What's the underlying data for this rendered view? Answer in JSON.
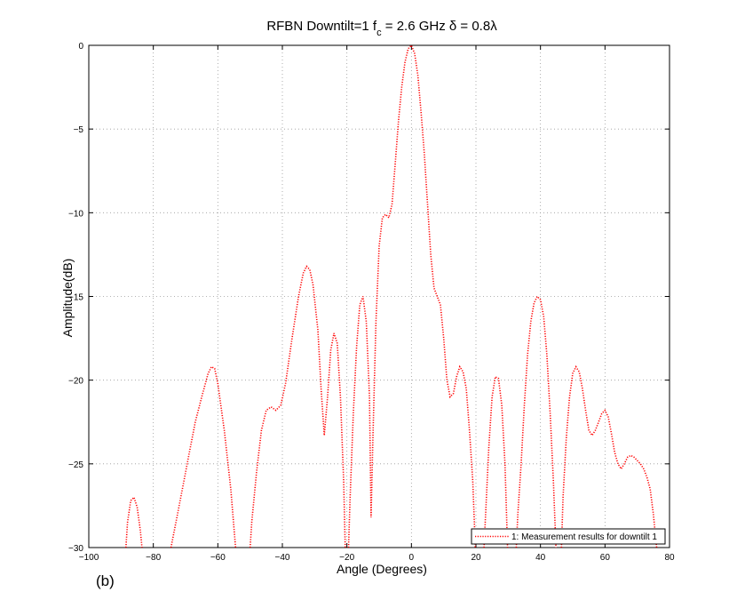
{
  "panel_label": "(b)",
  "colors": {
    "series": "#ff0000",
    "axis": "#000000",
    "grid": "#9a9a9a"
  },
  "chart_data": {
    "type": "line",
    "title": {
      "text1": "RFBN  Downtilt=1 f",
      "sub": "c",
      "text2": " = 2.6 GHz δ = 0.8λ"
    },
    "xlabel": "Angle (Degrees)",
    "ylabel": "Amplitude(dB)",
    "xlim": [
      -100,
      80
    ],
    "ylim": [
      -30,
      0
    ],
    "grid": true,
    "legend_position": "bottom-right",
    "x_ticks": [
      -100,
      -80,
      -60,
      -40,
      -20,
      0,
      20,
      40,
      60,
      80
    ],
    "x_tick_labels": [
      "−100",
      "−80",
      "−60",
      "−40",
      "−20",
      "0",
      "20",
      "40",
      "60",
      "80"
    ],
    "y_ticks": [
      0,
      -5,
      -10,
      -15,
      -20,
      -25,
      -30
    ],
    "y_tick_labels": [
      "0",
      "−5",
      "−10",
      "−15",
      "−20",
      "−25",
      "−30"
    ],
    "series": [
      {
        "name": "1: Measurement results for downtilt 1",
        "line_style": "dotted",
        "segments": [
          [
            [
              -88.5,
              -30
            ],
            [
              -88,
              -28.5
            ],
            [
              -87,
              -27.2
            ],
            [
              -86,
              -27
            ],
            [
              -85,
              -27.6
            ],
            [
              -84,
              -29
            ],
            [
              -83.5,
              -30
            ]
          ],
          [
            [
              -74.5,
              -30
            ],
            [
              -73,
              -28.5
            ],
            [
              -71,
              -26.5
            ],
            [
              -69,
              -24.5
            ],
            [
              -67,
              -22.5
            ],
            [
              -65,
              -21
            ],
            [
              -63,
              -19.6
            ],
            [
              -62,
              -19.2
            ],
            [
              -61,
              -19.3
            ],
            [
              -60,
              -20.2
            ],
            [
              -58,
              -23
            ],
            [
              -56,
              -26.5
            ],
            [
              -54.5,
              -30
            ]
          ],
          [
            [
              -50,
              -30
            ],
            [
              -49.5,
              -28.5
            ],
            [
              -48,
              -25.5
            ],
            [
              -46.5,
              -23
            ],
            [
              -45,
              -21.8
            ],
            [
              -43.5,
              -21.6
            ],
            [
              -42,
              -21.8
            ],
            [
              -40.5,
              -21.5
            ],
            [
              -39,
              -20.2
            ],
            [
              -37,
              -17.5
            ],
            [
              -35,
              -15
            ],
            [
              -33.5,
              -13.6
            ],
            [
              -32.5,
              -13.2
            ],
            [
              -31.5,
              -13.4
            ],
            [
              -30.5,
              -14.3
            ],
            [
              -29,
              -17
            ],
            [
              -28,
              -20.5
            ],
            [
              -27,
              -23.3
            ],
            [
              -26,
              -21
            ],
            [
              -25,
              -18.2
            ],
            [
              -24,
              -17.2
            ],
            [
              -23,
              -17.8
            ],
            [
              -22,
              -21
            ],
            [
              -21,
              -26
            ],
            [
              -20.5,
              -30
            ]
          ],
          [
            [
              -19.5,
              -30
            ],
            [
              -19,
              -27
            ],
            [
              -18,
              -22
            ],
            [
              -17,
              -18
            ],
            [
              -16,
              -15.5
            ],
            [
              -15,
              -15
            ],
            [
              -14,
              -16.5
            ],
            [
              -13,
              -21
            ],
            [
              -12.5,
              -28.2
            ],
            [
              -12,
              -24
            ],
            [
              -11,
              -16.5
            ],
            [
              -10,
              -12
            ],
            [
              -9,
              -10.3
            ],
            [
              -8,
              -10.1
            ],
            [
              -7,
              -10.3
            ],
            [
              -6,
              -9.5
            ],
            [
              -5,
              -7
            ],
            [
              -4,
              -4.5
            ],
            [
              -3,
              -2.5
            ],
            [
              -2,
              -1
            ],
            [
              -1,
              -0.2
            ],
            [
              0,
              0
            ],
            [
              1,
              -0.5
            ],
            [
              2,
              -1.8
            ],
            [
              3,
              -4
            ],
            [
              4,
              -6.5
            ],
            [
              5,
              -9.5
            ],
            [
              6,
              -12.5
            ],
            [
              7,
              -14.5
            ],
            [
              8,
              -15
            ],
            [
              9,
              -15.5
            ],
            [
              10,
              -17.5
            ],
            [
              11,
              -20
            ],
            [
              12,
              -21
            ],
            [
              13,
              -20.8
            ],
            [
              14,
              -19.8
            ],
            [
              15,
              -19.2
            ],
            [
              16,
              -19.5
            ],
            [
              17,
              -20.5
            ],
            [
              18,
              -23
            ],
            [
              19,
              -26
            ],
            [
              19.8,
              -30
            ]
          ],
          [
            [
              22.5,
              -30
            ],
            [
              23,
              -28
            ],
            [
              24,
              -24
            ],
            [
              25,
              -21
            ],
            [
              26,
              -19.8
            ],
            [
              27,
              -19.9
            ],
            [
              28,
              -21.5
            ],
            [
              29,
              -25
            ],
            [
              29.8,
              -30
            ]
          ],
          [
            [
              32.5,
              -30
            ],
            [
              33,
              -28
            ],
            [
              34,
              -25
            ],
            [
              35,
              -21.5
            ],
            [
              36,
              -18.5
            ],
            [
              37,
              -16.5
            ],
            [
              38,
              -15.4
            ],
            [
              39,
              -15
            ],
            [
              40,
              -15.2
            ],
            [
              41,
              -16.2
            ],
            [
              42,
              -18.5
            ],
            [
              43,
              -22
            ],
            [
              44,
              -26
            ],
            [
              44.8,
              -30
            ]
          ],
          [
            [
              46.5,
              -30
            ],
            [
              47,
              -27
            ],
            [
              48,
              -23.5
            ],
            [
              49,
              -21
            ],
            [
              50,
              -19.6
            ],
            [
              51,
              -19.2
            ],
            [
              52,
              -19.5
            ],
            [
              53,
              -20.5
            ],
            [
              54,
              -21.8
            ],
            [
              55,
              -23
            ],
            [
              56,
              -23.3
            ],
            [
              57,
              -23
            ],
            [
              58,
              -22.5
            ],
            [
              59,
              -22
            ],
            [
              60,
              -21.8
            ],
            [
              61,
              -22.2
            ],
            [
              62,
              -23.2
            ],
            [
              63,
              -24.3
            ],
            [
              64,
              -25
            ],
            [
              65,
              -25.3
            ],
            [
              66,
              -25
            ],
            [
              67,
              -24.6
            ],
            [
              68,
              -24.5
            ],
            [
              69,
              -24.6
            ],
            [
              70,
              -24.8
            ],
            [
              71,
              -25
            ],
            [
              72,
              -25.3
            ],
            [
              73,
              -25.8
            ],
            [
              74,
              -26.5
            ],
            [
              75,
              -28
            ],
            [
              76,
              -30
            ]
          ]
        ]
      }
    ]
  }
}
